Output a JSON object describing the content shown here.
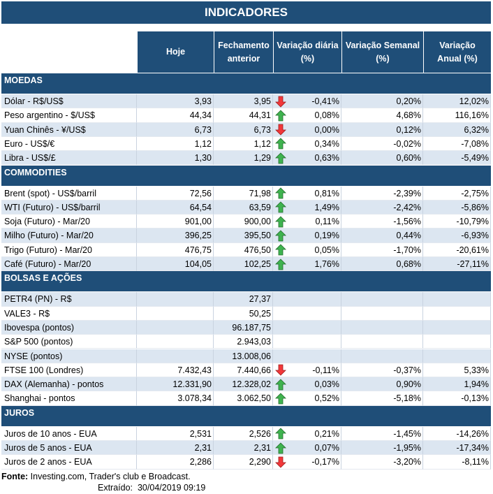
{
  "title": "INDICADORES",
  "header": {
    "hoje": [
      "Hoje"
    ],
    "fechamento": [
      "Fechamento",
      "anterior"
    ],
    "diaria": [
      "Variação diária",
      "(%)"
    ],
    "semanal": [
      "Variação Semanal",
      "(%)"
    ],
    "anual": [
      "Variação",
      "Anual (%)"
    ]
  },
  "sections": [
    {
      "title": "MOEDAS",
      "rows": [
        {
          "label": "Dólar - R$/US$",
          "hoje": "3,93",
          "fechamento": "3,95",
          "trend": "down",
          "diaria": "-0,41%",
          "semanal": "0,20%",
          "anual": "12,02%"
        },
        {
          "label": "Peso argentino - $/US$",
          "hoje": "44,34",
          "fechamento": "44,31",
          "trend": "up",
          "diaria": "0,08%",
          "semanal": "4,68%",
          "anual": "116,16%"
        },
        {
          "label": "Yuan Chinês - ¥/US$",
          "hoje": "6,73",
          "fechamento": "6,73",
          "trend": "down",
          "diaria": "0,00%",
          "semanal": "0,12%",
          "anual": "6,32%"
        },
        {
          "label": "Euro - US$/€",
          "hoje": "1,12",
          "fechamento": "1,12",
          "trend": "up",
          "diaria": "0,34%",
          "semanal": "-0,02%",
          "anual": "-7,08%"
        },
        {
          "label": "Libra - US$/£",
          "hoje": "1,30",
          "fechamento": "1,29",
          "trend": "up",
          "diaria": "0,63%",
          "semanal": "0,60%",
          "anual": "-5,49%"
        }
      ]
    },
    {
      "title": "COMMODITIES",
      "rows": [
        {
          "label": "Brent (spot) - US$/barril",
          "hoje": "72,56",
          "fechamento": "71,98",
          "trend": "up",
          "diaria": "0,81%",
          "semanal": "-2,39%",
          "anual": "-2,75%"
        },
        {
          "label": "WTI (Futuro) - US$/barril",
          "hoje": "64,54",
          "fechamento": "63,59",
          "trend": "up",
          "diaria": "1,49%",
          "semanal": "-2,42%",
          "anual": "-5,86%"
        },
        {
          "label": "Soja (Futuro) - Mar/20",
          "hoje": "901,00",
          "fechamento": "900,00",
          "trend": "up",
          "diaria": "0,11%",
          "semanal": "-1,56%",
          "anual": "-10,79%"
        },
        {
          "label": "Milho (Futuro) - Mar/20",
          "hoje": "396,25",
          "fechamento": "395,50",
          "trend": "up",
          "diaria": "0,19%",
          "semanal": "0,44%",
          "anual": "-6,93%"
        },
        {
          "label": "Trigo (Futuro) - Mar/20",
          "hoje": "476,75",
          "fechamento": "476,50",
          "trend": "up",
          "diaria": "0,05%",
          "semanal": "-1,70%",
          "anual": "-20,61%"
        },
        {
          "label": "Café (Futuro) - Mar/20",
          "hoje": "104,05",
          "fechamento": "102,25",
          "trend": "up",
          "diaria": "1,76%",
          "semanal": "0,68%",
          "anual": "-27,11%"
        }
      ]
    },
    {
      "title": "BOLSAS E AÇÕES",
      "rows": [
        {
          "label": "PETR4 (PN) - R$",
          "hoje": null,
          "fechamento": "27,37",
          "trend": null,
          "diaria": null,
          "semanal": null,
          "anual": null
        },
        {
          "label": "VALE3 - R$",
          "hoje": null,
          "fechamento": "50,25",
          "trend": null,
          "diaria": null,
          "semanal": null,
          "anual": null
        },
        {
          "label": "Ibovespa (pontos)",
          "hoje": null,
          "fechamento": "96.187,75",
          "trend": null,
          "diaria": null,
          "semanal": null,
          "anual": null
        },
        {
          "label": "S&P 500 (pontos)",
          "hoje": null,
          "fechamento": "2.943,03",
          "trend": null,
          "diaria": null,
          "semanal": null,
          "anual": null
        },
        {
          "label": "NYSE (pontos)",
          "hoje": null,
          "fechamento": "13.008,06",
          "trend": null,
          "diaria": null,
          "semanal": null,
          "anual": null
        },
        {
          "label": "FTSE 100 (Londres)",
          "hoje": "7.432,43",
          "fechamento": "7.440,66",
          "trend": "down",
          "diaria": "-0,11%",
          "semanal": "-0,37%",
          "anual": "5,33%"
        },
        {
          "label": "DAX (Alemanha) - pontos",
          "hoje": "12.331,90",
          "fechamento": "12.328,02",
          "trend": "up",
          "diaria": "0,03%",
          "semanal": "0,90%",
          "anual": "1,94%"
        },
        {
          "label": "Shanghai - pontos",
          "hoje": "3.078,34",
          "fechamento": "3.062,50",
          "trend": "up",
          "diaria": "0,52%",
          "semanal": "-5,18%",
          "anual": "-0,13%"
        }
      ]
    },
    {
      "title": "JUROS",
      "rows": [
        {
          "label": "Juros de 10 anos - EUA",
          "hoje": "2,531",
          "fechamento": "2,526",
          "trend": "up",
          "diaria": "0,21%",
          "semanal": "-1,45%",
          "anual": "-14,26%"
        },
        {
          "label": "Juros de 5 anos - EUA",
          "hoje": "2,31",
          "fechamento": "2,31",
          "trend": "up",
          "diaria": "0,07%",
          "semanal": "-1,95%",
          "anual": "-17,34%"
        },
        {
          "label": "Juros de 2 anos - EUA",
          "hoje": "2,286",
          "fechamento": "2,290",
          "trend": "down",
          "diaria": "-0,17%",
          "semanal": "-3,20%",
          "anual": "-8,11%"
        }
      ]
    }
  ],
  "footer": {
    "source_label": "Fonte:",
    "source": "Investing.com, Trader's club e Broadcast.",
    "extracted_label": "Extraído:",
    "extracted": "30/04/2019 09:19"
  }
}
